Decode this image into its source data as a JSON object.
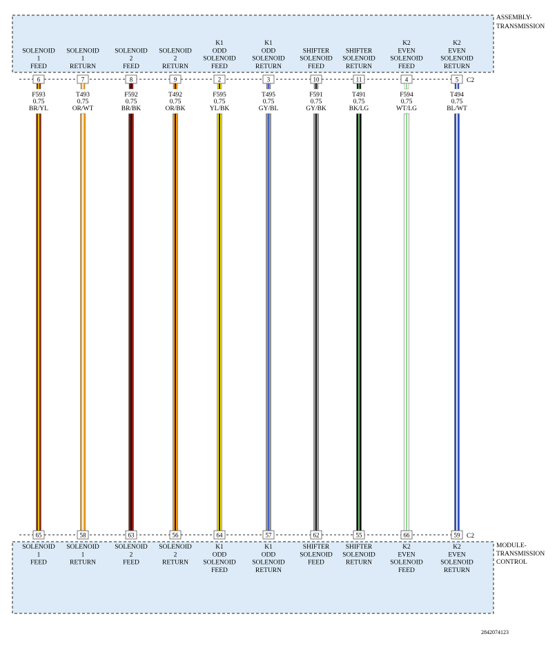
{
  "top_component": {
    "name_lines": [
      "ASSEMBLY-",
      "TRANSMISSION"
    ],
    "connector": "C2"
  },
  "bottom_component": {
    "name_lines": [
      "MODULE-",
      "TRANSMISSION",
      "CONTROL"
    ],
    "connector": "C2"
  },
  "figure_id": "2842074123",
  "wires": [
    {
      "circuit": "F593",
      "gauge": "0.75",
      "color_code": "BR/YL",
      "top_pin": "6",
      "bottom_pin": "65",
      "top_label": [
        "SOLENOID",
        "1",
        "FEED"
      ],
      "bottom_label": [
        "SOLENOID",
        "1",
        "FEED"
      ],
      "base_color": "#8b2a10",
      "stripe_color": "#f2d20a"
    },
    {
      "circuit": "T493",
      "gauge": "0.75",
      "color_code": "OR/WT",
      "top_pin": "7",
      "bottom_pin": "58",
      "top_label": [
        "SOLENOID",
        "1",
        "RETURN"
      ],
      "bottom_label": [
        "SOLENOID",
        "1",
        "RETURN"
      ],
      "base_color": "#f5a01e",
      "stripe_color": "#ffffff"
    },
    {
      "circuit": "F592",
      "gauge": "0.75",
      "color_code": "BR/BK",
      "top_pin": "8",
      "bottom_pin": "63",
      "top_label": [
        "SOLENOID",
        "2",
        "FEED"
      ],
      "bottom_label": [
        "SOLENOID",
        "2",
        "FEED"
      ],
      "base_color": "#8b1c12",
      "stripe_color": "#111111"
    },
    {
      "circuit": "T492",
      "gauge": "0.75",
      "color_code": "OR/BK",
      "top_pin": "9",
      "bottom_pin": "56",
      "top_label": [
        "SOLENOID",
        "2",
        "RETURN"
      ],
      "bottom_label": [
        "SOLENOID",
        "2",
        "RETURN"
      ],
      "base_color": "#f59a1a",
      "stripe_color": "#111111"
    },
    {
      "circuit": "F595",
      "gauge": "0.75",
      "color_code": "YL/BK",
      "top_pin": "2",
      "bottom_pin": "64",
      "top_label": [
        "K1",
        "ODD",
        "SOLENOID",
        "FEED"
      ],
      "bottom_label": [
        "K1",
        "ODD",
        "SOLENOID",
        "FEED"
      ],
      "base_color": "#f0e010",
      "stripe_color": "#111111"
    },
    {
      "circuit": "T495",
      "gauge": "0.75",
      "color_code": "GY/BL",
      "top_pin": "3",
      "bottom_pin": "57",
      "top_label": [
        "K1",
        "ODD",
        "SOLENOID",
        "RETURN"
      ],
      "bottom_label": [
        "K1",
        "ODD",
        "SOLENOID",
        "RETURN"
      ],
      "base_color": "#9a9a9a",
      "stripe_color": "#3a5cc8"
    },
    {
      "circuit": "F591",
      "gauge": "0.75",
      "color_code": "GY/BK",
      "top_pin": "10",
      "bottom_pin": "62",
      "top_label": [
        "SHIFTER",
        "SOLENOID",
        "FEED"
      ],
      "bottom_label": [
        "SHIFTER",
        "SOLENOID",
        "FEED"
      ],
      "base_color": "#9a9a9a",
      "stripe_color": "#111111"
    },
    {
      "circuit": "T491",
      "gauge": "0.75",
      "color_code": "BK/LG",
      "top_pin": "11",
      "bottom_pin": "55",
      "top_label": [
        "SHIFTER",
        "SOLENOID",
        "RETURN"
      ],
      "bottom_label": [
        "SHIFTER",
        "SOLENOID",
        "RETURN"
      ],
      "base_color": "#111111",
      "stripe_color": "#7cd67c"
    },
    {
      "circuit": "F594",
      "gauge": "0.75",
      "color_code": "WT/LG",
      "top_pin": "4",
      "bottom_pin": "66",
      "top_label": [
        "K2",
        "EVEN",
        "SOLENOID",
        "FEED"
      ],
      "bottom_label": [
        "K2",
        "EVEN",
        "SOLENOID",
        "FEED"
      ],
      "base_color": "#ffffff",
      "stripe_color": "#7cd67c"
    },
    {
      "circuit": "T494",
      "gauge": "0.75",
      "color_code": "BL/WT",
      "top_pin": "5",
      "bottom_pin": "59",
      "top_label": [
        "K2",
        "EVEN",
        "SOLENOID",
        "RETURN"
      ],
      "bottom_label": [
        "K2",
        "EVEN",
        "SOLENOID",
        "RETURN"
      ],
      "base_color": "#2c4fc4",
      "stripe_color": "#ffffff"
    }
  ]
}
